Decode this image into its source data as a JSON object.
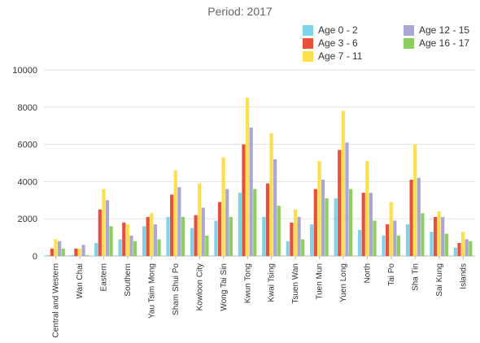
{
  "chart_data": {
    "type": "bar",
    "title": "Period: 2017",
    "categories": [
      "Central and Western",
      "Wan Chai",
      "Eastern",
      "Southern",
      "Yau Tsim Mong",
      "Sham Shui Po",
      "Kowloon City",
      "Wong Tai Sin",
      "Kwun Tong",
      "Kwai Tsing",
      "Tsuen Wan",
      "Tuen Mun",
      "Yuen Long",
      "North",
      "Tai Po",
      "Sha Tin",
      "Sai Kung",
      "Islands"
    ],
    "series": [
      {
        "name": "Age 0 - 2",
        "color": "#7dd3ea",
        "values": [
          50,
          50,
          700,
          900,
          1600,
          2100,
          1500,
          1900,
          3400,
          2100,
          800,
          1700,
          3100,
          1400,
          1100,
          1700,
          1300,
          450
        ]
      },
      {
        "name": "Age 3 - 6",
        "color": "#e8503a",
        "values": [
          400,
          400,
          2500,
          1800,
          2100,
          3300,
          2200,
          2900,
          6000,
          3900,
          1800,
          3600,
          5700,
          3400,
          1700,
          4100,
          2100,
          700
        ]
      },
      {
        "name": "Age 7 - 11",
        "color": "#fde04b",
        "values": [
          900,
          400,
          3600,
          1700,
          2300,
          4600,
          3900,
          5300,
          8500,
          6600,
          2500,
          5100,
          7800,
          5100,
          2900,
          6000,
          2400,
          1300
        ]
      },
      {
        "name": "Age 12 - 15",
        "color": "#aaa6d6",
        "values": [
          800,
          600,
          3000,
          1100,
          1700,
          3700,
          2600,
          3600,
          6900,
          5200,
          2100,
          4100,
          6100,
          3400,
          1900,
          4200,
          2100,
          900
        ]
      },
      {
        "name": "Age 16 - 17",
        "color": "#8ccf5e",
        "values": [
          400,
          50,
          1600,
          800,
          900,
          2100,
          1100,
          2100,
          3600,
          2700,
          900,
          3100,
          3600,
          1900,
          1100,
          2300,
          1200,
          800
        ]
      }
    ],
    "ylim": [
      0,
      10000
    ],
    "yticks": [
      0,
      2000,
      4000,
      6000,
      8000,
      10000
    ],
    "grid": true,
    "legend_position": "top-right"
  }
}
